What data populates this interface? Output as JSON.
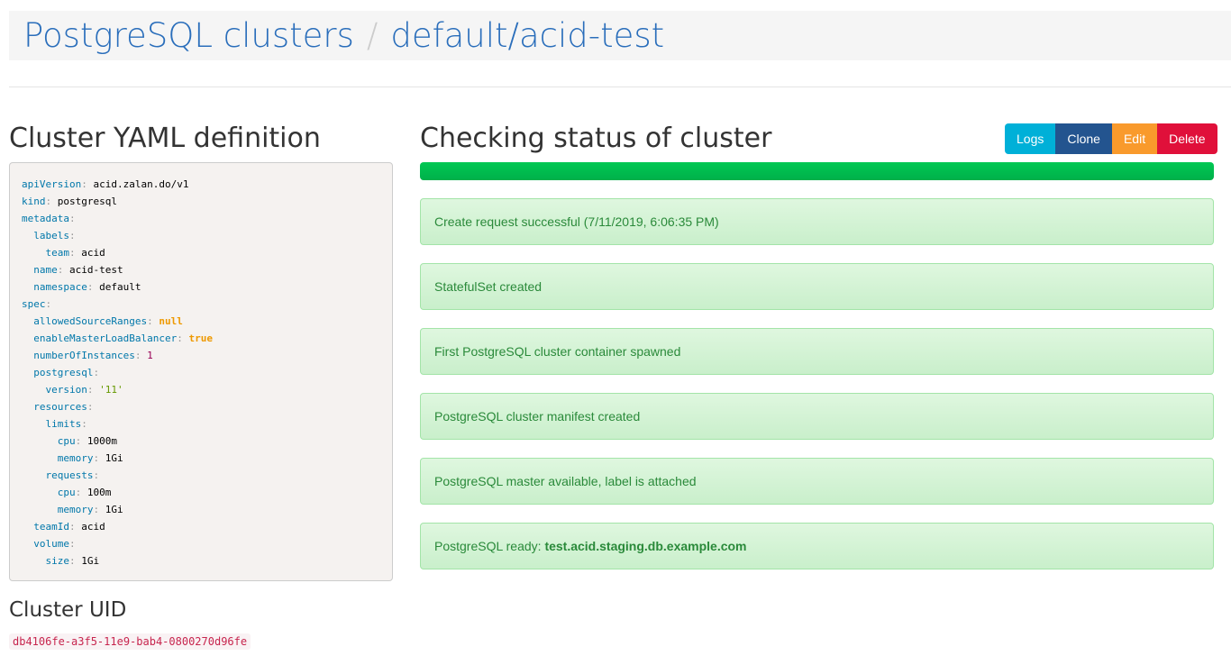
{
  "header": {
    "root": "PostgreSQL clusters",
    "separator": "/",
    "current": "default/acid-test"
  },
  "yaml_title": "Cluster YAML definition",
  "yaml": [
    {
      "i": 0,
      "k": "apiVersion",
      "v": "acid.zalan.do/v1",
      "t": "s"
    },
    {
      "i": 0,
      "k": "kind",
      "v": "postgresql",
      "t": "s"
    },
    {
      "i": 0,
      "k": "metadata",
      "v": "",
      "t": "s"
    },
    {
      "i": 1,
      "k": "labels",
      "v": "",
      "t": "s"
    },
    {
      "i": 2,
      "k": "team",
      "v": "acid",
      "t": "s"
    },
    {
      "i": 1,
      "k": "name",
      "v": "acid-test",
      "t": "s"
    },
    {
      "i": 1,
      "k": "namespace",
      "v": "default",
      "t": "s"
    },
    {
      "i": 0,
      "k": "spec",
      "v": "",
      "t": "s"
    },
    {
      "i": 1,
      "k": "allowedSourceRanges",
      "v": "null",
      "t": "b"
    },
    {
      "i": 1,
      "k": "enableMasterLoadBalancer",
      "v": "true",
      "t": "b"
    },
    {
      "i": 1,
      "k": "numberOfInstances",
      "v": "1",
      "t": "n"
    },
    {
      "i": 1,
      "k": "postgresql",
      "v": "",
      "t": "s"
    },
    {
      "i": 2,
      "k": "version",
      "v": "'11'",
      "t": "q"
    },
    {
      "i": 1,
      "k": "resources",
      "v": "",
      "t": "s"
    },
    {
      "i": 2,
      "k": "limits",
      "v": "",
      "t": "s"
    },
    {
      "i": 3,
      "k": "cpu",
      "v": "1000m",
      "t": "s"
    },
    {
      "i": 3,
      "k": "memory",
      "v": "1Gi",
      "t": "s"
    },
    {
      "i": 2,
      "k": "requests",
      "v": "",
      "t": "s"
    },
    {
      "i": 3,
      "k": "cpu",
      "v": "100m",
      "t": "s"
    },
    {
      "i": 3,
      "k": "memory",
      "v": "1Gi",
      "t": "s"
    },
    {
      "i": 1,
      "k": "teamId",
      "v": "acid",
      "t": "s"
    },
    {
      "i": 1,
      "k": "volume",
      "v": "",
      "t": "s"
    },
    {
      "i": 2,
      "k": "size",
      "v": "1Gi",
      "t": "s"
    }
  ],
  "uid_title": "Cluster UID",
  "uid": "db4106fe-a3f5-11e9-bab4-0800270d96fe",
  "status_title": "Checking status of cluster",
  "progress_percent": 100,
  "buttons": {
    "logs": "Logs",
    "clone": "Clone",
    "edit": "Edit",
    "delete": "Delete"
  },
  "colors": {
    "logs": "#00b0d8",
    "clone": "#23548f",
    "edit": "#f99a2c",
    "delete": "#e0103a",
    "progress": "#00c853"
  },
  "alerts": [
    {
      "text": "Create request successful (7/11/2019, 6:06:35 PM)",
      "bold": ""
    },
    {
      "text": "StatefulSet created",
      "bold": ""
    },
    {
      "text": "First PostgreSQL cluster container spawned",
      "bold": ""
    },
    {
      "text": "PostgreSQL cluster manifest created",
      "bold": ""
    },
    {
      "text": "PostgreSQL master available, label is attached",
      "bold": ""
    },
    {
      "text": "PostgreSQL ready: ",
      "bold": "test.acid.staging.db.example.com"
    }
  ]
}
